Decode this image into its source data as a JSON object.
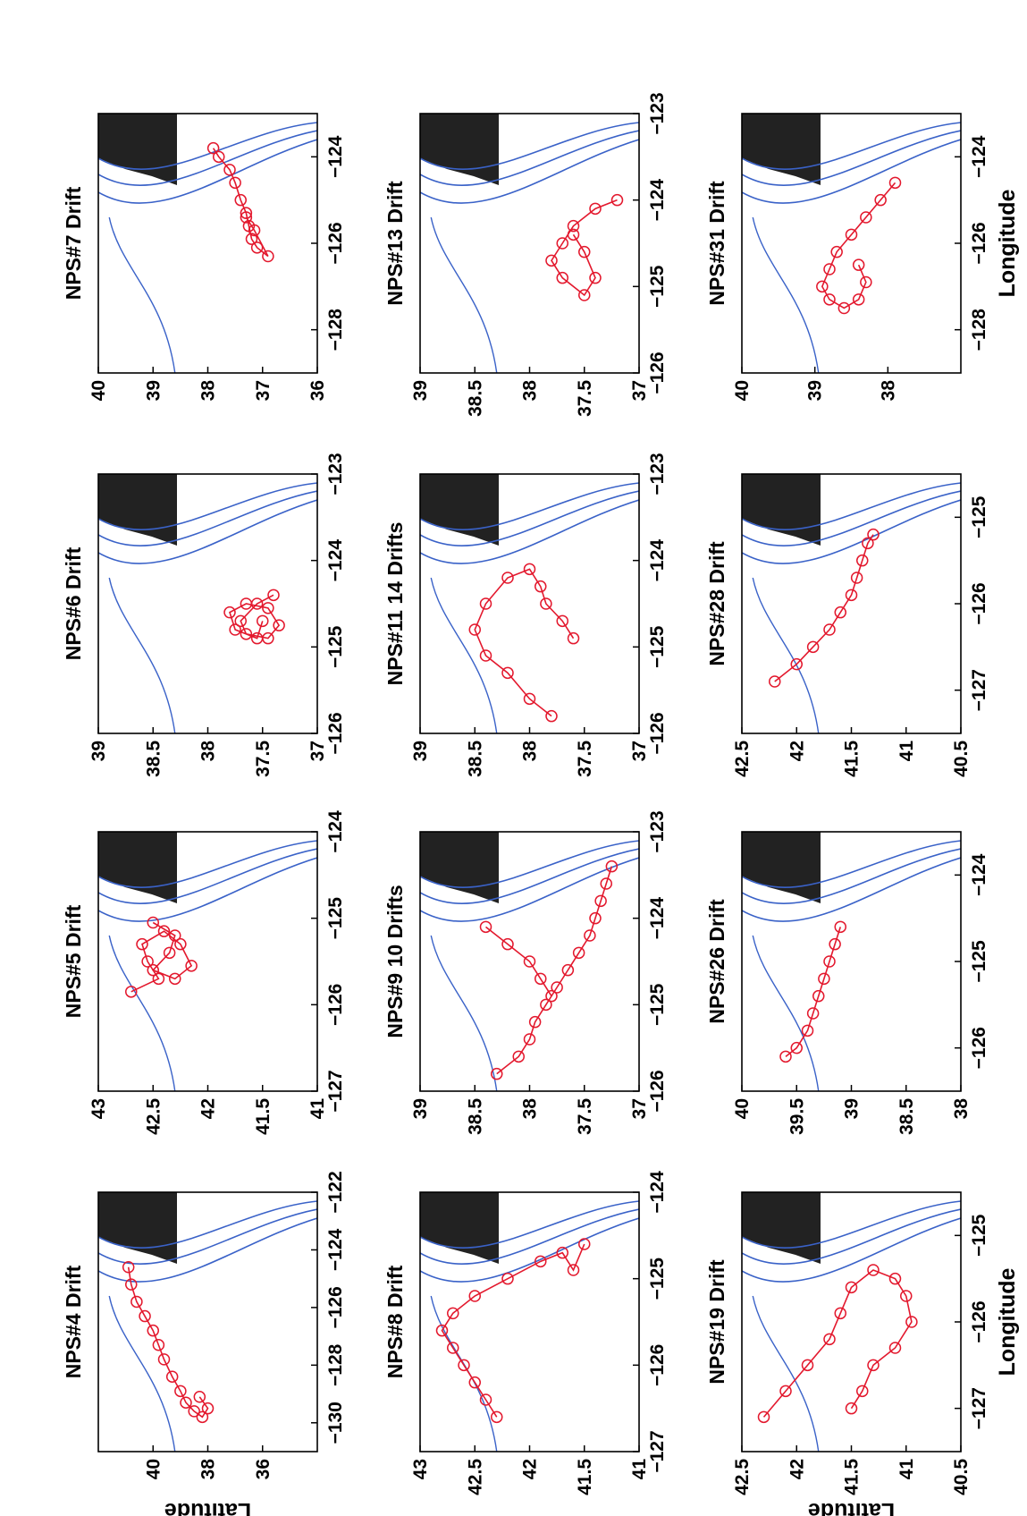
{
  "chart_data": [
    {
      "type": "line",
      "title": "NPS#4 Drift",
      "xlim": [
        -131,
        -122
      ],
      "ylim": [
        34,
        42
      ],
      "xticks": [
        -130,
        -128,
        -126,
        -124,
        -122
      ],
      "xtick_labels": [
        "−130",
        "−128",
        "−126",
        "−124",
        "−122"
      ],
      "yticks": [
        36,
        38,
        40
      ],
      "ytick_labels": [
        "36",
        "38",
        "40"
      ],
      "xlabel": "",
      "ylabel": "Latitude",
      "series": [
        {
          "x": [
            -124.6,
            -125.2,
            -125.8,
            -126.3,
            -126.8,
            -127.3,
            -127.8,
            -128.4,
            -128.9,
            -129.3,
            -129.6,
            -129.8,
            -129.5,
            -129.1
          ],
          "y": [
            40.9,
            40.8,
            40.6,
            40.3,
            40.0,
            39.8,
            39.6,
            39.3,
            39.0,
            38.8,
            38.5,
            38.2,
            38.0,
            38.3
          ]
        }
      ]
    },
    {
      "type": "line",
      "title": "NPS#5 Drift",
      "xlim": [
        -127,
        -124
      ],
      "ylim": [
        41,
        43
      ],
      "xticks": [
        -127,
        -126,
        -125,
        -124
      ],
      "xtick_labels": [
        "−127",
        "−126",
        "−125",
        "−124"
      ],
      "yticks": [
        41,
        41.5,
        42,
        42.5,
        43
      ],
      "ytick_labels": [
        "41",
        "41.5",
        "42",
        "42.5",
        "43"
      ],
      "xlabel": "",
      "ylabel": "",
      "series": [
        {
          "x": [
            -125.05,
            -125.2,
            -125.4,
            -125.6,
            -125.7,
            -125.55,
            -125.3,
            -125.15,
            -125.3,
            -125.5,
            -125.7,
            -125.85
          ],
          "y": [
            42.5,
            42.3,
            42.35,
            42.5,
            42.3,
            42.15,
            42.25,
            42.4,
            42.6,
            42.55,
            42.45,
            42.7
          ]
        }
      ]
    },
    {
      "type": "line",
      "title": "NPS#6 Drift",
      "xlim": [
        -126,
        -123
      ],
      "ylim": [
        37,
        39
      ],
      "xticks": [
        -126,
        -125,
        -124,
        -123
      ],
      "xtick_labels": [
        "−126",
        "−125",
        "−124",
        "−123"
      ],
      "yticks": [
        37,
        37.5,
        38,
        38.5,
        39
      ],
      "ytick_labels": [
        "37",
        "37.5",
        "38",
        "38.5",
        "39"
      ],
      "xlabel": "",
      "ylabel": "",
      "series": [
        {
          "x": [
            -124.4,
            -124.5,
            -124.7,
            -124.85,
            -124.9,
            -124.75,
            -124.55,
            -124.5,
            -124.6,
            -124.8,
            -124.9,
            -124.7
          ],
          "y": [
            37.4,
            37.55,
            37.7,
            37.65,
            37.45,
            37.35,
            37.45,
            37.65,
            37.8,
            37.75,
            37.55,
            37.5
          ]
        }
      ]
    },
    {
      "type": "line",
      "title": "NPS#7 Drift",
      "xlim": [
        -129,
        -123
      ],
      "ylim": [
        36,
        40
      ],
      "xticks": [
        -128,
        -126,
        -124
      ],
      "xtick_labels": [
        "−128",
        "−126",
        "−124"
      ],
      "yticks": [
        36,
        37,
        38,
        39,
        40
      ],
      "ytick_labels": [
        "36",
        "37",
        "38",
        "39",
        "40"
      ],
      "xlabel": "",
      "ylabel": "",
      "series": [
        {
          "x": [
            -123.8,
            -124.0,
            -124.3,
            -124.6,
            -125.0,
            -125.3,
            -125.6,
            -125.9,
            -126.1,
            -126.3,
            -125.7,
            -125.4
          ],
          "y": [
            37.9,
            37.8,
            37.6,
            37.5,
            37.4,
            37.3,
            37.25,
            37.2,
            37.1,
            36.9,
            37.15,
            37.3
          ]
        }
      ]
    },
    {
      "type": "line",
      "title": "NPS#8 Drift",
      "xlim": [
        -127,
        -124
      ],
      "ylim": [
        41,
        43
      ],
      "xticks": [
        -127,
        -126,
        -125,
        -124
      ],
      "xtick_labels": [
        "−127",
        "−126",
        "−125",
        "−124"
      ],
      "yticks": [
        41,
        41.5,
        42,
        42.5,
        43
      ],
      "ytick_labels": [
        "41",
        "41.5",
        "42",
        "42.5",
        "43"
      ],
      "xlabel": "",
      "ylabel": "",
      "series": [
        {
          "x": [
            -126.6,
            -126.4,
            -126.2,
            -126.0,
            -125.8,
            -125.6,
            -125.4,
            -125.2,
            -125.0,
            -124.8,
            -124.7,
            -124.9,
            -124.6
          ],
          "y": [
            42.3,
            42.4,
            42.5,
            42.6,
            42.7,
            42.8,
            42.7,
            42.5,
            42.2,
            41.9,
            41.7,
            41.6,
            41.5
          ]
        }
      ]
    },
    {
      "type": "line",
      "title": "NPS#9 10 Drifts",
      "xlim": [
        -126,
        -123
      ],
      "ylim": [
        37,
        39
      ],
      "xticks": [
        -126,
        -125,
        -124,
        -123
      ],
      "xtick_labels": [
        "−126",
        "−125",
        "−124",
        "−123"
      ],
      "yticks": [
        37,
        37.5,
        38,
        38.5,
        39
      ],
      "ytick_labels": [
        "37",
        "37.5",
        "38",
        "38.5",
        "39"
      ],
      "xlabel": "",
      "ylabel": "",
      "series": [
        {
          "x": [
            -125.8,
            -125.6,
            -125.4,
            -125.2,
            -125.0,
            -124.8,
            -124.6,
            -124.4,
            -124.2,
            -124.0,
            -123.8,
            -123.6,
            -123.4
          ],
          "y": [
            38.3,
            38.1,
            38.0,
            37.95,
            37.85,
            37.75,
            37.65,
            37.55,
            37.45,
            37.4,
            37.35,
            37.3,
            37.25
          ]
        },
        {
          "x": [
            -124.1,
            -124.3,
            -124.5,
            -124.7,
            -124.9
          ],
          "y": [
            38.4,
            38.2,
            38.0,
            37.9,
            37.8
          ]
        }
      ]
    },
    {
      "type": "line",
      "title": "NPS#11 14 Drifts",
      "xlim": [
        -126,
        -123
      ],
      "ylim": [
        37,
        39
      ],
      "xticks": [
        -126,
        -125,
        -124,
        -123
      ],
      "xtick_labels": [
        "−126",
        "−125",
        "−124",
        "−123"
      ],
      "yticks": [
        37,
        37.5,
        38,
        38.5,
        39
      ],
      "ytick_labels": [
        "37",
        "37.5",
        "38",
        "38.5",
        "39"
      ],
      "xlabel": "",
      "ylabel": "",
      "series": [
        {
          "x": [
            -124.9,
            -124.7,
            -124.5,
            -124.3,
            -124.1,
            -124.2,
            -124.5,
            -124.8,
            -125.1,
            -125.3,
            -125.6,
            -125.8
          ],
          "y": [
            37.6,
            37.7,
            37.85,
            37.9,
            38.0,
            38.2,
            38.4,
            38.5,
            38.4,
            38.2,
            38.0,
            37.8
          ]
        }
      ]
    },
    {
      "type": "line",
      "title": "NPS#13 Drift",
      "xlim": [
        -126,
        -123
      ],
      "ylim": [
        37,
        39
      ],
      "xticks": [
        -126,
        -125,
        -124,
        -123
      ],
      "xtick_labels": [
        "−126",
        "−125",
        "−124",
        "−123"
      ],
      "yticks": [
        37,
        37.5,
        38,
        38.5,
        39
      ],
      "ytick_labels": [
        "37",
        "37.5",
        "38",
        "38.5",
        "39"
      ],
      "xlabel": "",
      "ylabel": "",
      "series": [
        {
          "x": [
            -124.0,
            -124.1,
            -124.3,
            -124.5,
            -124.7,
            -124.9,
            -125.1,
            -124.9,
            -124.6,
            -124.4
          ],
          "y": [
            37.2,
            37.4,
            37.6,
            37.7,
            37.8,
            37.7,
            37.5,
            37.4,
            37.5,
            37.6
          ]
        }
      ]
    },
    {
      "type": "line",
      "title": "NPS#19 Drift",
      "xlim": [
        -127.5,
        -124.5
      ],
      "ylim": [
        40.5,
        42.5
      ],
      "xticks": [
        -127,
        -126,
        -125
      ],
      "xtick_labels": [
        "−127",
        "−126",
        "−125"
      ],
      "yticks": [
        40.5,
        41,
        41.5,
        42,
        42.5
      ],
      "ytick_labels": [
        "40.5",
        "41",
        "41.5",
        "42",
        "42.5"
      ],
      "xlabel": "Longitude",
      "ylabel": "Latitude",
      "series": [
        {
          "x": [
            -127.1,
            -126.8,
            -126.5,
            -126.2,
            -125.9,
            -125.6,
            -125.4,
            -125.5,
            -125.7,
            -126.0,
            -126.3,
            -126.5,
            -126.8,
            -127.0
          ],
          "y": [
            42.3,
            42.1,
            41.9,
            41.7,
            41.6,
            41.5,
            41.3,
            41.1,
            41.0,
            40.95,
            41.1,
            41.3,
            41.4,
            41.5
          ]
        }
      ]
    },
    {
      "type": "line",
      "title": "NPS#26 Drift",
      "xlim": [
        -126.5,
        -123.5
      ],
      "ylim": [
        38,
        40
      ],
      "xticks": [
        -126,
        -125,
        -124
      ],
      "xtick_labels": [
        "−126",
        "−125",
        "−124"
      ],
      "yticks": [
        38,
        38.5,
        39,
        39.5,
        40
      ],
      "ytick_labels": [
        "38",
        "38.5",
        "39",
        "39.5",
        "40"
      ],
      "xlabel": "",
      "ylabel": "",
      "series": [
        {
          "x": [
            -124.6,
            -124.8,
            -125.0,
            -125.2,
            -125.4,
            -125.6,
            -125.8,
            -126.0,
            -126.1
          ],
          "y": [
            39.1,
            39.15,
            39.2,
            39.25,
            39.3,
            39.35,
            39.4,
            39.5,
            39.6
          ]
        }
      ]
    },
    {
      "type": "line",
      "title": "NPS#28 Drift",
      "xlim": [
        -127.5,
        -124.5
      ],
      "ylim": [
        40.5,
        42.5
      ],
      "xticks": [
        -127,
        -126,
        -125
      ],
      "xtick_labels": [
        "−127",
        "−126",
        "−125"
      ],
      "yticks": [
        40.5,
        41,
        41.5,
        42,
        42.5
      ],
      "ytick_labels": [
        "40.5",
        "41",
        "41.5",
        "42",
        "42.5"
      ],
      "xlabel": "",
      "ylabel": "",
      "series": [
        {
          "x": [
            -126.9,
            -126.7,
            -126.5,
            -126.3,
            -126.1,
            -125.9,
            -125.7,
            -125.5,
            -125.3,
            -125.2
          ],
          "y": [
            42.2,
            42.0,
            41.85,
            41.7,
            41.6,
            41.5,
            41.45,
            41.4,
            41.35,
            41.3
          ]
        }
      ]
    },
    {
      "type": "line",
      "title": "NPS#31 Drift",
      "xlim": [
        -129,
        -123
      ],
      "ylim": [
        37,
        40
      ],
      "xticks": [
        -128,
        -126,
        -124
      ],
      "xtick_labels": [
        "−128",
        "−126",
        "−124"
      ],
      "yticks": [
        38,
        39,
        40
      ],
      "ytick_labels": [
        "38",
        "39",
        "40"
      ],
      "xlabel": "Longitude",
      "ylabel": "",
      "series": [
        {
          "x": [
            -124.6,
            -125.0,
            -125.4,
            -125.8,
            -126.2,
            -126.6,
            -127.0,
            -127.3,
            -127.5,
            -127.3,
            -126.9,
            -126.5
          ],
          "y": [
            37.9,
            38.1,
            38.3,
            38.5,
            38.7,
            38.8,
            38.9,
            38.8,
            38.6,
            38.4,
            38.3,
            38.4
          ]
        }
      ]
    }
  ]
}
